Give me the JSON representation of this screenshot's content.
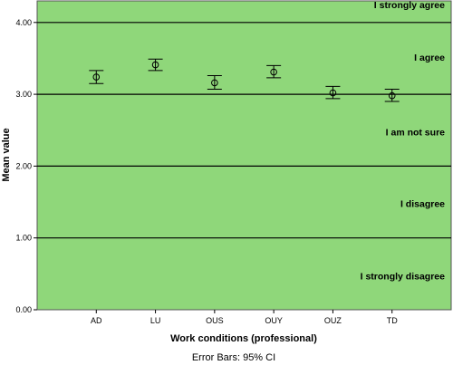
{
  "chart_data": {
    "type": "scatter",
    "xlabel": "Work conditions (professional)",
    "ylabel": "Mean value",
    "categories": [
      "AD",
      "LU",
      "OUS",
      "OUY",
      "OUZ",
      "TD"
    ],
    "means": [
      3.24,
      3.41,
      3.16,
      3.31,
      3.02,
      2.98
    ],
    "ci_low": [
      3.15,
      3.33,
      3.07,
      3.23,
      2.94,
      2.9
    ],
    "ci_high": [
      3.33,
      3.49,
      3.26,
      3.4,
      3.11,
      3.07
    ],
    "ylim": [
      0.0,
      4.3
    ],
    "yticks": [
      "0.00",
      "1.00",
      "2.00",
      "3.00",
      "4.00"
    ],
    "grid": true,
    "reference_lines": [
      1,
      2,
      3,
      4
    ],
    "band_labels": [
      {
        "text": "I strongly agree",
        "y": 4.25
      },
      {
        "text": "I agree",
        "y": 3.52
      },
      {
        "text": "I am not sure",
        "y": 2.48
      },
      {
        "text": "I disagree",
        "y": 1.48
      },
      {
        "text": "I strongly disagree",
        "y": 0.47
      }
    ],
    "footnote": "Error Bars: 95% CI",
    "colors": {
      "plot_background": "#8fd77a",
      "marker": "#000000",
      "grid": "#000000"
    }
  }
}
